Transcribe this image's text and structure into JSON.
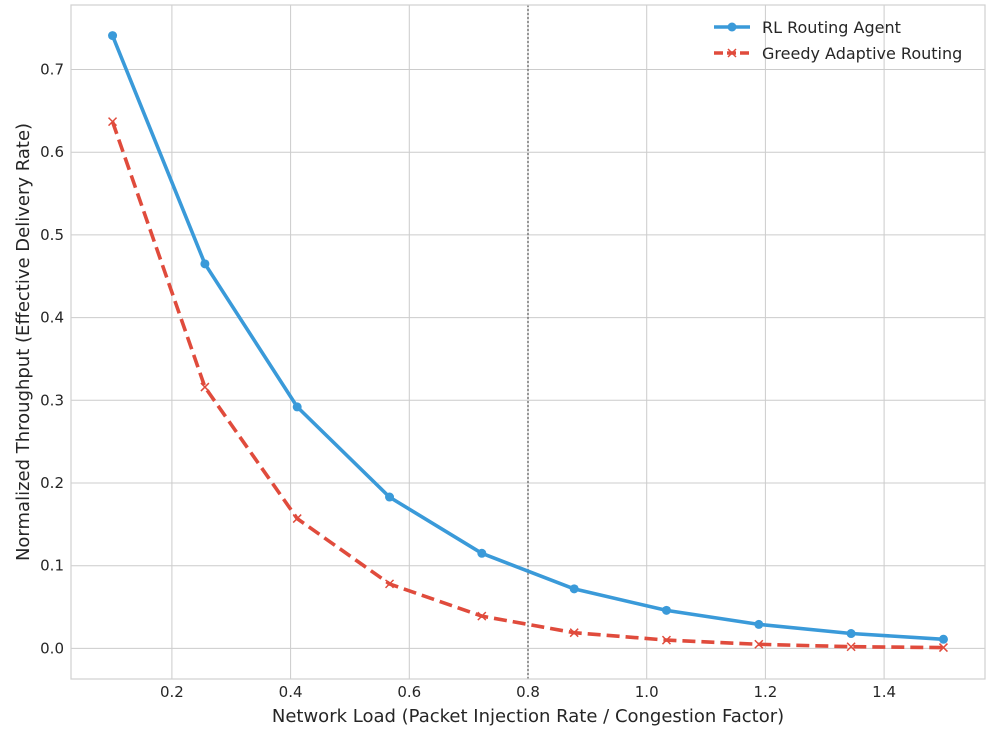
{
  "chart_data": {
    "type": "line",
    "title": "",
    "xlabel": "Network Load (Packet Injection Rate / Congestion Factor)",
    "ylabel": "Normalized Throughput (Effective Delivery Rate)",
    "xlim": [
      0.03,
      1.57
    ],
    "ylim": [
      -0.037,
      0.778
    ],
    "xticks": [
      0.2,
      0.4,
      0.6,
      0.8,
      1.0,
      1.2,
      1.4
    ],
    "xtick_labels": [
      "0.2",
      "0.4",
      "0.6",
      "0.8",
      "1.0",
      "1.2",
      "1.4"
    ],
    "yticks": [
      0.0,
      0.1,
      0.2,
      0.3,
      0.4,
      0.5,
      0.6,
      0.7
    ],
    "ytick_labels": [
      "0.0",
      "0.1",
      "0.2",
      "0.3",
      "0.4",
      "0.5",
      "0.6",
      "0.7"
    ],
    "grid": true,
    "legend_position": "top-right",
    "reference_line": {
      "x": 0.8,
      "style": "dotted",
      "color": "#777777"
    },
    "x": [
      0.1,
      0.2556,
      0.4111,
      0.5667,
      0.7222,
      0.8778,
      1.0333,
      1.1889,
      1.3444,
      1.5
    ],
    "series": [
      {
        "name": "RL Routing Agent",
        "color": "#3a9ad9",
        "line_style": "solid",
        "marker": "circle",
        "values": [
          0.741,
          0.465,
          0.292,
          0.183,
          0.115,
          0.072,
          0.046,
          0.029,
          0.018,
          0.011
        ]
      },
      {
        "name": "Greedy Adaptive Routing",
        "color": "#e04b3c",
        "line_style": "dashed",
        "marker": "x",
        "values": [
          0.637,
          0.316,
          0.157,
          0.078,
          0.039,
          0.019,
          0.01,
          0.005,
          0.002,
          0.001
        ]
      }
    ]
  }
}
